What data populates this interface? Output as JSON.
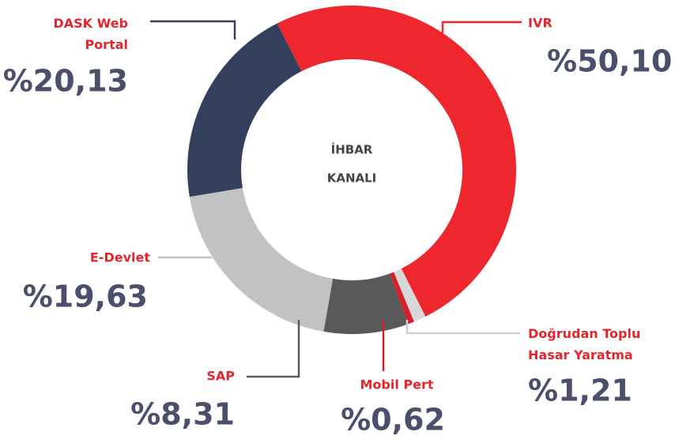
{
  "chart_data": {
    "type": "donut",
    "center_label": [
      "İHBAR",
      "KANALI"
    ],
    "categories": [
      "IVR",
      "Doğrudan Toplu Hasar Yaratma",
      "Mobil Pert",
      "SAP",
      "E-Devlet",
      "DASK Web Portal"
    ],
    "values": [
      50.1,
      1.21,
      0.62,
      8.31,
      19.63,
      20.13
    ],
    "value_labels": [
      "%50,10",
      "%1,21",
      "%0,62",
      "%8,31",
      "%19,63",
      "%20,13"
    ],
    "colors": [
      "#ee262d",
      "#d8d8d9",
      "#d3202c",
      "#58595b",
      "#c1c2c4",
      "#343f5e"
    ]
  }
}
